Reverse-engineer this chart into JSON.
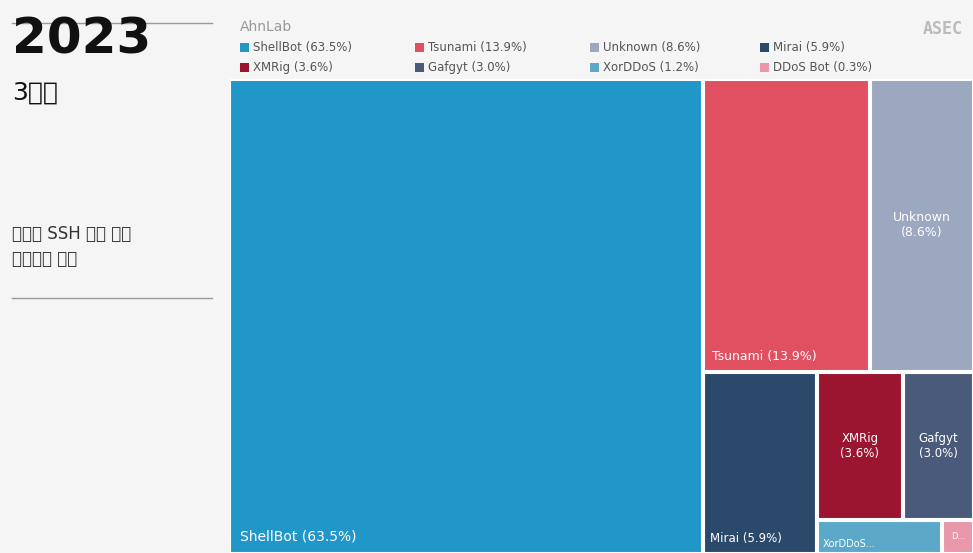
{
  "title_year": "2023",
  "title_quarter": "3분기",
  "subtitle_left": "리눅스 SSH 서버 대상",
  "subtitle_left2": "악성코드 분류",
  "branding_left": "AhnLab",
  "branding_right": "ASEC",
  "bg_left": "#f5f5f5",
  "bg_right": "#eeeeee",
  "items": [
    {
      "label": "ShellBot",
      "pct": 63.5,
      "color": "#2196C8"
    },
    {
      "label": "Tsunami",
      "pct": 13.9,
      "color": "#E05060"
    },
    {
      "label": "Unknown",
      "pct": 8.6,
      "color": "#9BA8C0"
    },
    {
      "label": "Mirai",
      "pct": 5.9,
      "color": "#2B4A6B"
    },
    {
      "label": "XMRig",
      "pct": 3.6,
      "color": "#9B1530"
    },
    {
      "label": "Gafgyt",
      "pct": 3.0,
      "color": "#4A5A7A"
    },
    {
      "label": "XorDDoS",
      "pct": 1.2,
      "color": "#5BA8C8"
    },
    {
      "label": "DDoS Bot",
      "pct": 0.3,
      "color": "#E898A8"
    }
  ],
  "legend_row1": [
    {
      "label": "ShellBot (63.5%)",
      "color": "#2196C8"
    },
    {
      "label": "Tsunami (13.9%)",
      "color": "#E05060"
    },
    {
      "label": "Unknown (8.6%)",
      "color": "#9BA8C0"
    },
    {
      "label": "Mirai (5.9%)",
      "color": "#2B4A6B"
    }
  ],
  "legend_row2": [
    {
      "label": "XMRig (3.6%)",
      "color": "#9B1530"
    },
    {
      "label": "Gafgyt (3.0%)",
      "color": "#4A5A7A"
    },
    {
      "label": "XorDDoS (1.2%)",
      "color": "#5BA8C8"
    },
    {
      "label": "DDoS Bot (0.3%)",
      "color": "#E898A8"
    }
  ]
}
